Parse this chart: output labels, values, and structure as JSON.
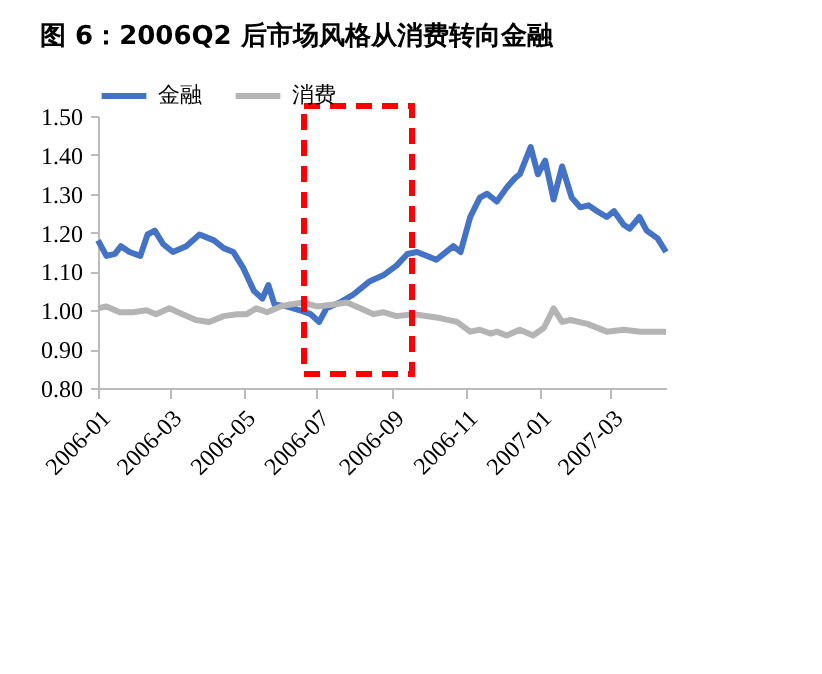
{
  "chart_data": {
    "type": "line",
    "title": "图 6：2006Q2 后市场风格从消费转向金融",
    "legend": "top",
    "grid": false,
    "marker": "none",
    "line_style": "solid",
    "xlim": [
      "2006-01-01",
      "2007-04-16"
    ],
    "xticks": [
      "2006-01",
      "2006-03",
      "2006-05",
      "2006-07",
      "2006-09",
      "2006-11",
      "2007-01",
      "2007-03"
    ],
    "ylim": [
      0.8,
      1.5
    ],
    "yticks": [
      {
        "value": 0.8,
        "label": "0.80"
      },
      {
        "value": 0.9,
        "label": "0.90"
      },
      {
        "value": 1.0,
        "label": "1.00"
      },
      {
        "value": 1.1,
        "label": "1.10"
      },
      {
        "value": 1.2,
        "label": "1.20"
      },
      {
        "value": 1.3,
        "label": "1.30"
      },
      {
        "value": 1.4,
        "label": "1.40"
      },
      {
        "value": 1.5,
        "label": "1.50"
      }
    ],
    "series": [
      {
        "name": "金融",
        "color": "#4472c4",
        "x": [
          "2006-01-01",
          "2006-01-08",
          "2006-01-15",
          "2006-01-20",
          "2006-01-27",
          "2006-02-05",
          "2006-02-11",
          "2006-02-17",
          "2006-02-24",
          "2006-03-04",
          "2006-03-15",
          "2006-03-26",
          "2006-04-07",
          "2006-04-15",
          "2006-04-23",
          "2006-05-01",
          "2006-05-10",
          "2006-05-17",
          "2006-05-22",
          "2006-05-27",
          "2006-06-06",
          "2006-06-17",
          "2006-06-26",
          "2006-07-03",
          "2006-07-09",
          "2006-07-20",
          "2006-07-31",
          "2006-08-14",
          "2006-08-25",
          "2006-09-05",
          "2006-09-14",
          "2006-09-22",
          "2006-10-08",
          "2006-10-22",
          "2006-10-28",
          "2006-11-05",
          "2006-11-13",
          "2006-11-19",
          "2006-11-27",
          "2006-12-05",
          "2006-12-12",
          "2006-12-16",
          "2006-12-25",
          "2006-12-31",
          "2007-01-06",
          "2007-01-13",
          "2007-01-20",
          "2007-01-28",
          "2007-02-04",
          "2007-02-11",
          "2007-02-18",
          "2007-02-26",
          "2007-03-04",
          "2007-03-12",
          "2007-03-17",
          "2007-03-25",
          "2007-03-31",
          "2007-04-09",
          "2007-04-16"
        ],
        "values": [
          1.18,
          1.14,
          1.145,
          1.165,
          1.15,
          1.14,
          1.195,
          1.205,
          1.17,
          1.15,
          1.165,
          1.195,
          1.18,
          1.16,
          1.15,
          1.11,
          1.05,
          1.03,
          1.065,
          1.015,
          1.01,
          1.0,
          0.99,
          0.97,
          1.005,
          1.02,
          1.04,
          1.075,
          1.09,
          1.115,
          1.145,
          1.15,
          1.13,
          1.165,
          1.15,
          1.24,
          1.29,
          1.3,
          1.28,
          1.315,
          1.34,
          1.35,
          1.42,
          1.35,
          1.385,
          1.285,
          1.37,
          1.29,
          1.265,
          1.27,
          1.255,
          1.24,
          1.255,
          1.22,
          1.21,
          1.24,
          1.205,
          1.185,
          1.15
        ]
      },
      {
        "name": "消费",
        "color": "#b4b4b4",
        "x": [
          "2006-01-01",
          "2006-01-08",
          "2006-01-19",
          "2006-01-30",
          "2006-02-10",
          "2006-02-18",
          "2006-03-01",
          "2006-03-12",
          "2006-03-23",
          "2006-04-03",
          "2006-04-15",
          "2006-04-26",
          "2006-05-04",
          "2006-05-12",
          "2006-05-21",
          "2006-06-01",
          "2006-06-09",
          "2006-06-20",
          "2006-07-01",
          "2006-07-15",
          "2006-07-26",
          "2006-08-06",
          "2006-08-17",
          "2006-08-25",
          "2006-09-05",
          "2006-09-19",
          "2006-10-11",
          "2006-10-25",
          "2006-11-05",
          "2006-11-13",
          "2006-11-22",
          "2006-11-27",
          "2006-12-05",
          "2006-12-16",
          "2006-12-27",
          "2007-01-05",
          "2007-01-13",
          "2007-01-20",
          "2007-01-27",
          "2007-02-10",
          "2007-02-26",
          "2007-03-12",
          "2007-03-26",
          "2007-04-16"
        ],
        "values": [
          1.005,
          1.01,
          0.995,
          0.995,
          1.0,
          0.99,
          1.005,
          0.99,
          0.975,
          0.97,
          0.985,
          0.99,
          0.99,
          1.005,
          0.995,
          1.01,
          1.015,
          1.02,
          1.01,
          1.015,
          1.02,
          1.005,
          0.99,
          0.995,
          0.985,
          0.99,
          0.98,
          0.97,
          0.945,
          0.95,
          0.94,
          0.945,
          0.935,
          0.95,
          0.935,
          0.955,
          1.005,
          0.97,
          0.975,
          0.965,
          0.945,
          0.95,
          0.945,
          0.945
        ]
      }
    ]
  }
}
